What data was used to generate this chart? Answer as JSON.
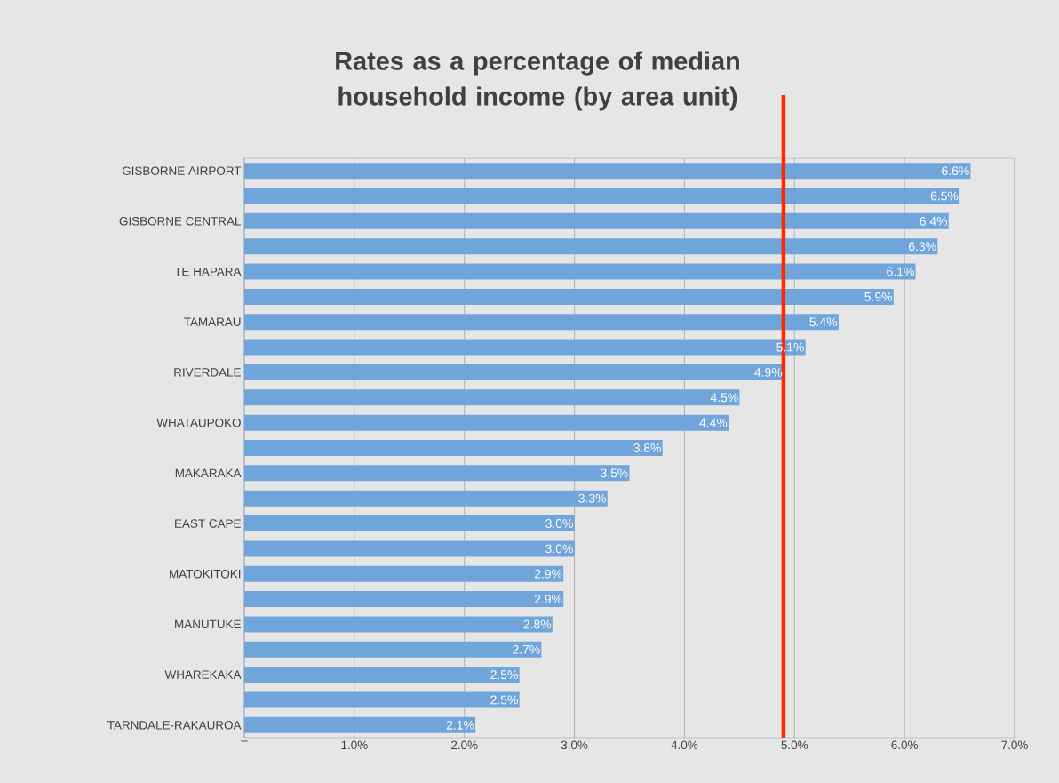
{
  "chart_data": {
    "type": "bar",
    "orientation": "horizontal",
    "title": "Rates as a percentage of median household income (by area unit)",
    "categories": [
      "GISBORNE AIRPORT",
      null,
      "GISBORNE CENTRAL",
      null,
      "TE HAPARA",
      null,
      "TAMARAU",
      null,
      "RIVERDALE",
      null,
      "WHATAUPOKO",
      null,
      "MAKARAKA",
      null,
      "EAST CAPE",
      null,
      "MATOKITOKI",
      null,
      "MANUTUKE",
      null,
      "WHAREKAKA",
      null,
      "TARNDALE-RAKAUROA"
    ],
    "values": [
      6.6,
      6.5,
      6.4,
      6.3,
      6.1,
      5.9,
      5.4,
      5.1,
      4.9,
      4.5,
      4.4,
      3.8,
      3.5,
      3.3,
      3.0,
      3.0,
      2.9,
      2.9,
      2.8,
      2.7,
      2.5,
      2.5,
      2.1
    ],
    "value_labels": [
      "6.6%",
      "6.5%",
      "6.4%",
      "6.3%",
      "6.1%",
      "5.9%",
      "5.4%",
      "5.1%",
      "4.9%",
      "4.5%",
      "4.4%",
      "3.8%",
      "3.5%",
      "3.3%",
      "3.0%",
      "3.0%",
      "2.9%",
      "2.9%",
      "2.8%",
      "2.7%",
      "2.5%",
      "2.5%",
      "2.1%"
    ],
    "color": "#6fa5da",
    "xlim": [
      0,
      7
    ],
    "xticks": [
      {
        "value": 0,
        "label": "–"
      },
      {
        "value": 1,
        "label": "1.0%"
      },
      {
        "value": 2,
        "label": "2.0%"
      },
      {
        "value": 3,
        "label": "3.0%"
      },
      {
        "value": 4,
        "label": "4.0%"
      },
      {
        "value": 5,
        "label": "5.0%"
      },
      {
        "value": 6,
        "label": "6.0%"
      },
      {
        "value": 7,
        "label": "7.0%"
      }
    ],
    "grid": "x",
    "ref_lines": [
      {
        "axis": "x",
        "value": 4.9,
        "color": "#ff2a00"
      }
    ]
  }
}
